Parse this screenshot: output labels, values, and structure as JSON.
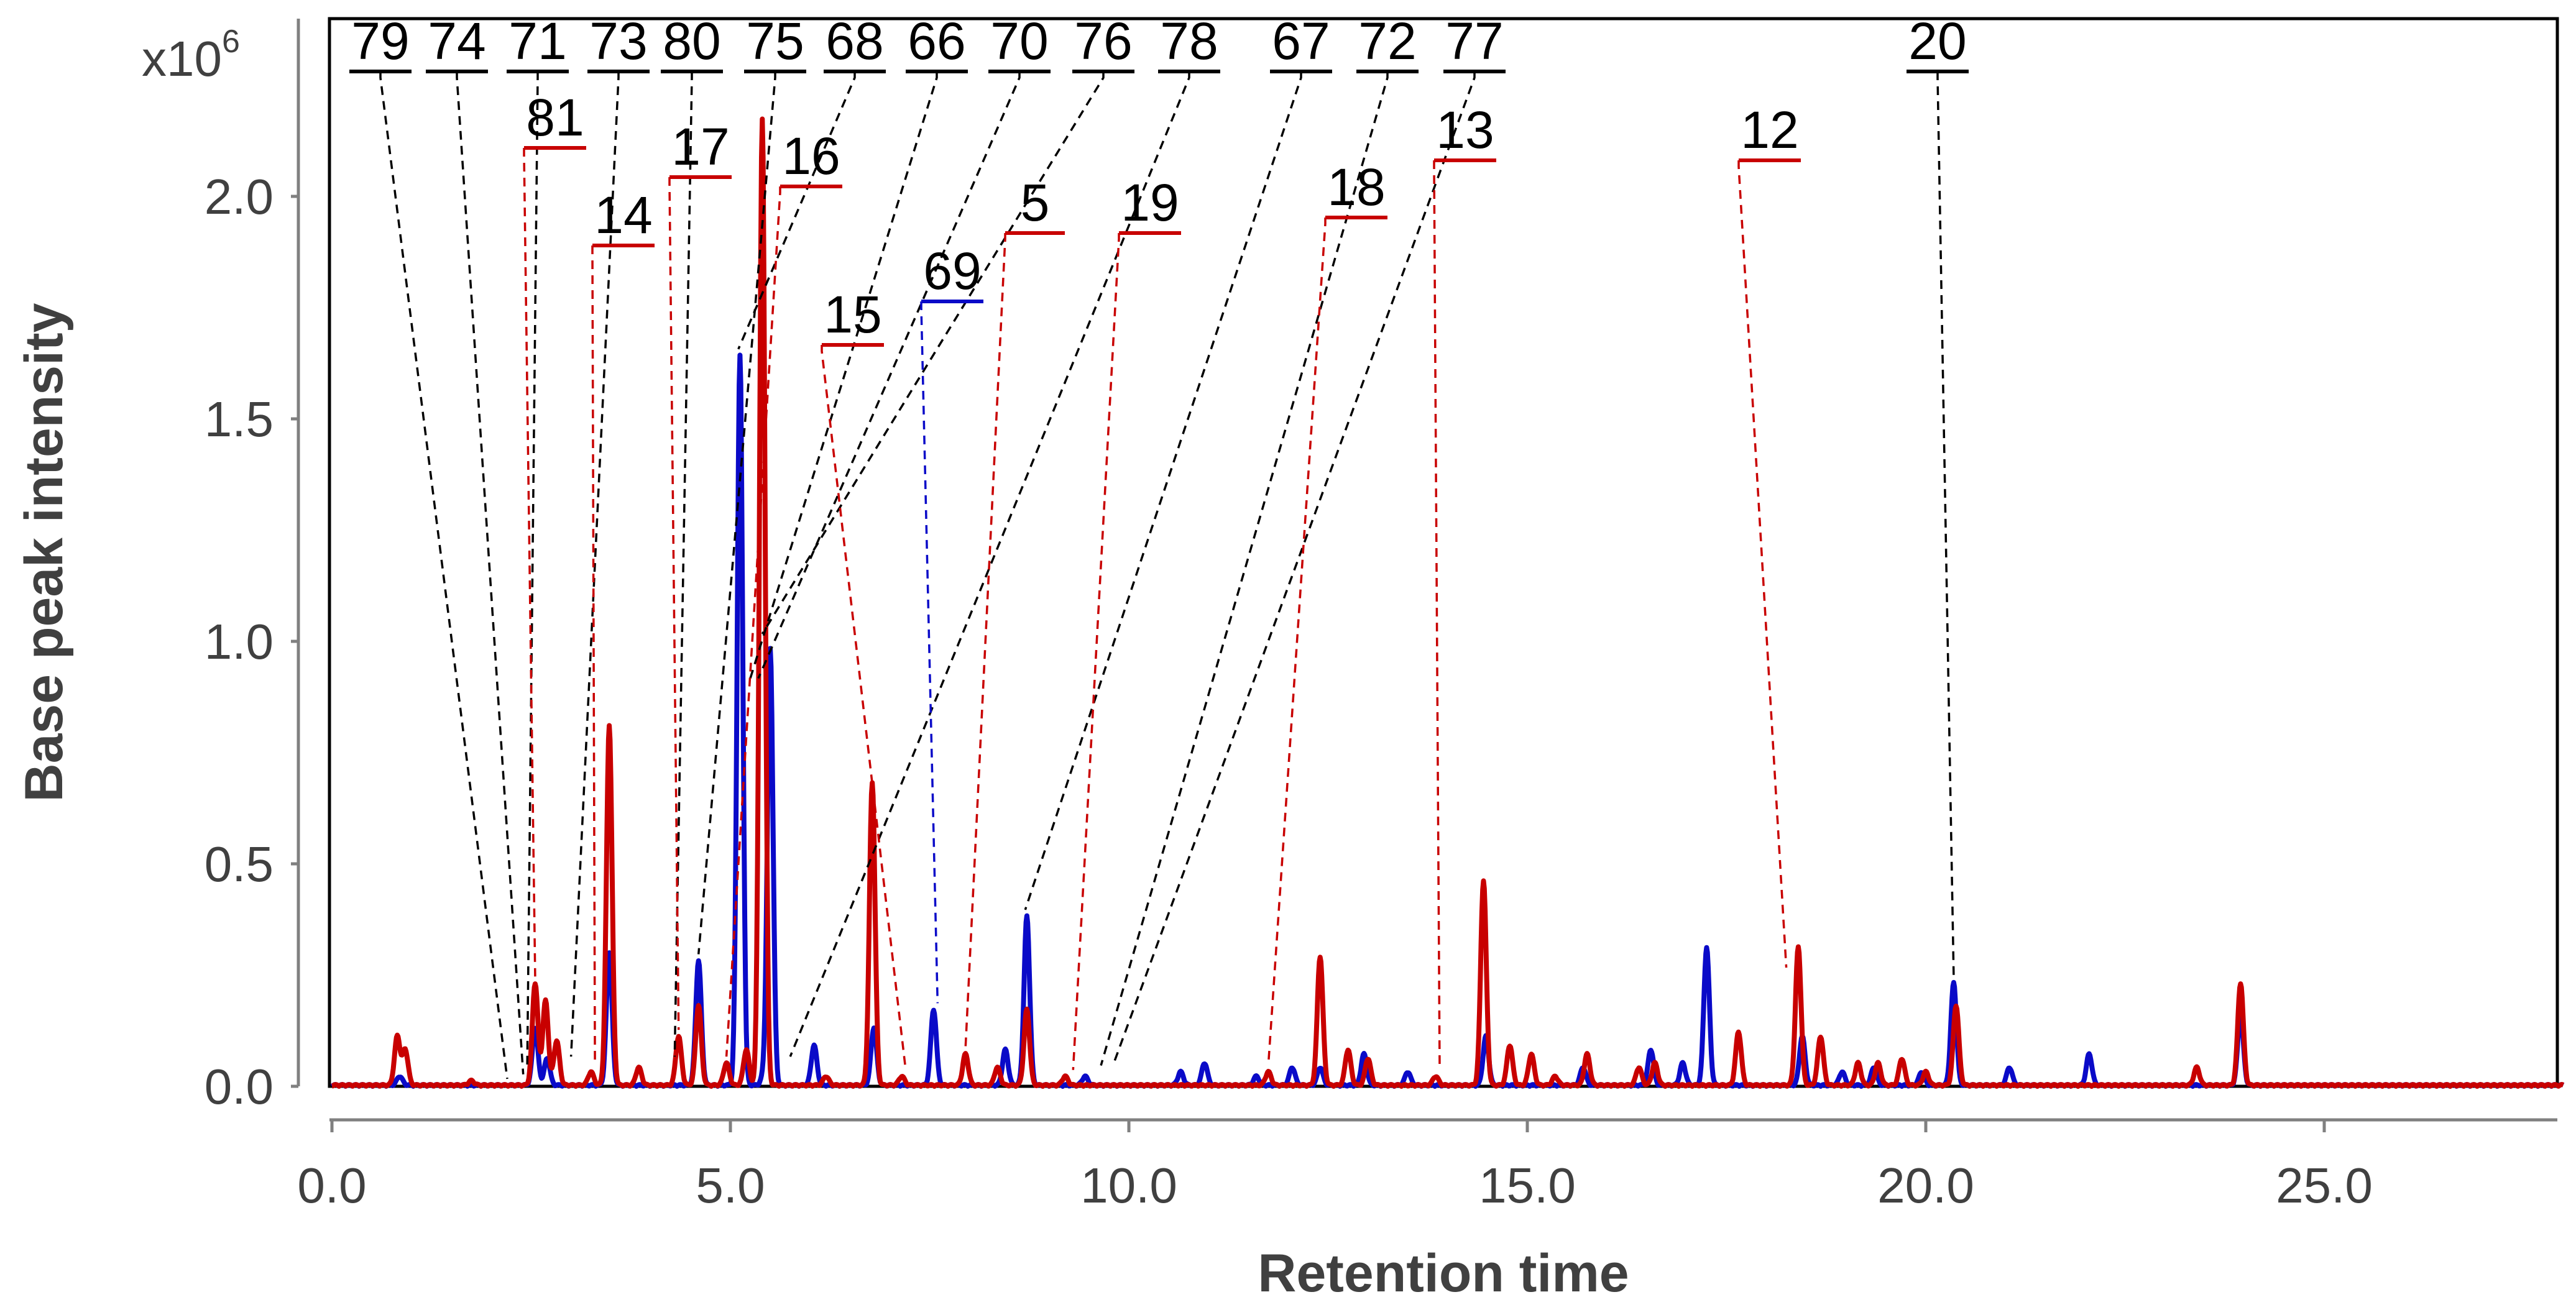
{
  "chart_data": {
    "type": "line",
    "title": "",
    "xlabel": "Retention time",
    "ylabel": "Base peak intensity",
    "y_multiplier": {
      "prefix": "x10",
      "exponent": "6"
    },
    "xlim": [
      0,
      28
    ],
    "ylim": [
      0,
      2.4
    ],
    "xticks": [
      "0.0",
      "5.0",
      "10.0",
      "15.0",
      "20.0",
      "25.0"
    ],
    "yticks": [
      "0.0",
      "0.5",
      "1.0",
      "1.5",
      "2.0"
    ],
    "grid": false,
    "colors": {
      "blue_trace": "#0a0ac8",
      "red_trace": "#c80000",
      "neutral_label": "#000000",
      "axis": "#808080"
    },
    "series": [
      {
        "name": "blue trace",
        "color": "#0a0ac8",
        "peaks": [
          {
            "rt": 0.85,
            "h": 0.02
          },
          {
            "rt": 2.55,
            "h": 0.13
          },
          {
            "rt": 2.7,
            "h": 0.06
          },
          {
            "rt": 3.48,
            "h": 0.3
          },
          {
            "rt": 4.6,
            "h": 0.28
          },
          {
            "rt": 5.12,
            "h": 1.64
          },
          {
            "rt": 5.42,
            "h": 0.02
          },
          {
            "rt": 5.5,
            "h": 0.98
          },
          {
            "rt": 6.05,
            "h": 0.09
          },
          {
            "rt": 6.8,
            "h": 0.13
          },
          {
            "rt": 7.55,
            "h": 0.17
          },
          {
            "rt": 8.45,
            "h": 0.08
          },
          {
            "rt": 8.72,
            "h": 0.38
          },
          {
            "rt": 9.45,
            "h": 0.02
          },
          {
            "rt": 10.65,
            "h": 0.03
          },
          {
            "rt": 10.95,
            "h": 0.05
          },
          {
            "rt": 11.6,
            "h": 0.02
          },
          {
            "rt": 12.05,
            "h": 0.04
          },
          {
            "rt": 12.4,
            "h": 0.04
          },
          {
            "rt": 12.95,
            "h": 0.07
          },
          {
            "rt": 13.5,
            "h": 0.03
          },
          {
            "rt": 14.48,
            "h": 0.11
          },
          {
            "rt": 15.7,
            "h": 0.04
          },
          {
            "rt": 16.55,
            "h": 0.08
          },
          {
            "rt": 16.95,
            "h": 0.05
          },
          {
            "rt": 17.25,
            "h": 0.31
          },
          {
            "rt": 18.45,
            "h": 0.11
          },
          {
            "rt": 18.95,
            "h": 0.03
          },
          {
            "rt": 19.35,
            "h": 0.04
          },
          {
            "rt": 19.95,
            "h": 0.03
          },
          {
            "rt": 20.35,
            "h": 0.23
          },
          {
            "rt": 21.05,
            "h": 0.04
          },
          {
            "rt": 22.05,
            "h": 0.07
          },
          {
            "rt": 23.95,
            "h": 0.16
          }
        ]
      },
      {
        "name": "red trace",
        "color": "#c80000",
        "peaks": [
          {
            "rt": 0.82,
            "h": 0.11
          },
          {
            "rt": 0.92,
            "h": 0.08
          },
          {
            "rt": 1.75,
            "h": 0.01
          },
          {
            "rt": 2.55,
            "h": 0.23
          },
          {
            "rt": 2.68,
            "h": 0.19
          },
          {
            "rt": 2.82,
            "h": 0.1
          },
          {
            "rt": 3.25,
            "h": 0.03
          },
          {
            "rt": 3.48,
            "h": 0.81
          },
          {
            "rt": 3.85,
            "h": 0.04
          },
          {
            "rt": 4.35,
            "h": 0.11
          },
          {
            "rt": 4.6,
            "h": 0.18
          },
          {
            "rt": 4.95,
            "h": 0.05
          },
          {
            "rt": 5.2,
            "h": 0.08
          },
          {
            "rt": 5.4,
            "h": 2.17
          },
          {
            "rt": 6.2,
            "h": 0.02
          },
          {
            "rt": 6.78,
            "h": 0.68
          },
          {
            "rt": 7.15,
            "h": 0.02
          },
          {
            "rt": 7.95,
            "h": 0.07
          },
          {
            "rt": 8.35,
            "h": 0.04
          },
          {
            "rt": 8.72,
            "h": 0.17
          },
          {
            "rt": 9.2,
            "h": 0.02
          },
          {
            "rt": 11.75,
            "h": 0.03
          },
          {
            "rt": 12.4,
            "h": 0.29
          },
          {
            "rt": 12.75,
            "h": 0.08
          },
          {
            "rt": 13.0,
            "h": 0.06
          },
          {
            "rt": 13.85,
            "h": 0.02
          },
          {
            "rt": 14.45,
            "h": 0.46
          },
          {
            "rt": 14.78,
            "h": 0.09
          },
          {
            "rt": 15.05,
            "h": 0.07
          },
          {
            "rt": 15.35,
            "h": 0.02
          },
          {
            "rt": 15.75,
            "h": 0.07
          },
          {
            "rt": 16.4,
            "h": 0.04
          },
          {
            "rt": 16.6,
            "h": 0.05
          },
          {
            "rt": 17.65,
            "h": 0.12
          },
          {
            "rt": 18.4,
            "h": 0.31
          },
          {
            "rt": 18.68,
            "h": 0.11
          },
          {
            "rt": 19.15,
            "h": 0.05
          },
          {
            "rt": 19.4,
            "h": 0.05
          },
          {
            "rt": 19.7,
            "h": 0.06
          },
          {
            "rt": 20.0,
            "h": 0.03
          },
          {
            "rt": 20.38,
            "h": 0.18
          },
          {
            "rt": 23.4,
            "h": 0.04
          },
          {
            "rt": 23.95,
            "h": 0.23
          }
        ]
      }
    ],
    "annotations": [
      {
        "label": "79",
        "series": "black",
        "rt": 2.2,
        "y": 0.0
      },
      {
        "label": "74",
        "series": "black",
        "rt": 2.4,
        "y": 0.01
      },
      {
        "label": "71",
        "series": "black",
        "rt": 2.45,
        "y": 0.02
      },
      {
        "label": "73",
        "series": "black",
        "rt": 3.0,
        "y": 0.05
      },
      {
        "label": "80",
        "series": "black",
        "rt": 4.3,
        "y": 0.05
      },
      {
        "label": "75",
        "series": "black",
        "rt": 4.6,
        "y": 0.28
      },
      {
        "label": "68",
        "series": "black",
        "rt": 5.1,
        "y": 1.64
      },
      {
        "label": "66",
        "series": "black",
        "rt": 5.25,
        "y": 0.9
      },
      {
        "label": "70",
        "series": "black",
        "rt": 5.35,
        "y": 0.9
      },
      {
        "label": "76",
        "series": "black",
        "rt": 5.4,
        "y": 1.0
      },
      {
        "label": "78",
        "series": "black",
        "rt": 5.75,
        "y": 0.05
      },
      {
        "label": "67",
        "series": "black",
        "rt": 8.7,
        "y": 0.38
      },
      {
        "label": "72",
        "series": "black",
        "rt": 9.65,
        "y": 0.03
      },
      {
        "label": "77",
        "series": "black",
        "rt": 9.8,
        "y": 0.03
      },
      {
        "label": "20",
        "series": "black",
        "rt": 20.35,
        "y": 0.23
      },
      {
        "label": "81",
        "series": "red",
        "rt": 2.55,
        "y": 0.23
      },
      {
        "label": "14",
        "series": "red",
        "rt": 3.3,
        "y": 0.03
      },
      {
        "label": "17",
        "series": "red",
        "rt": 4.35,
        "y": 0.11
      },
      {
        "label": "16",
        "series": "red",
        "rt": 4.95,
        "y": 0.05
      },
      {
        "label": "15",
        "series": "red",
        "rt": 7.2,
        "y": 0.02
      },
      {
        "label": "5",
        "series": "red",
        "rt": 7.95,
        "y": 0.07
      },
      {
        "label": "19",
        "series": "red",
        "rt": 9.3,
        "y": 0.02
      },
      {
        "label": "18",
        "series": "red",
        "rt": 11.75,
        "y": 0.03
      },
      {
        "label": "13",
        "series": "red",
        "rt": 13.9,
        "y": 0.02
      },
      {
        "label": "12",
        "series": "red",
        "rt": 18.25,
        "y": 0.25
      },
      {
        "label": "69",
        "series": "blue",
        "rt": 7.6,
        "y": 0.17
      }
    ]
  }
}
